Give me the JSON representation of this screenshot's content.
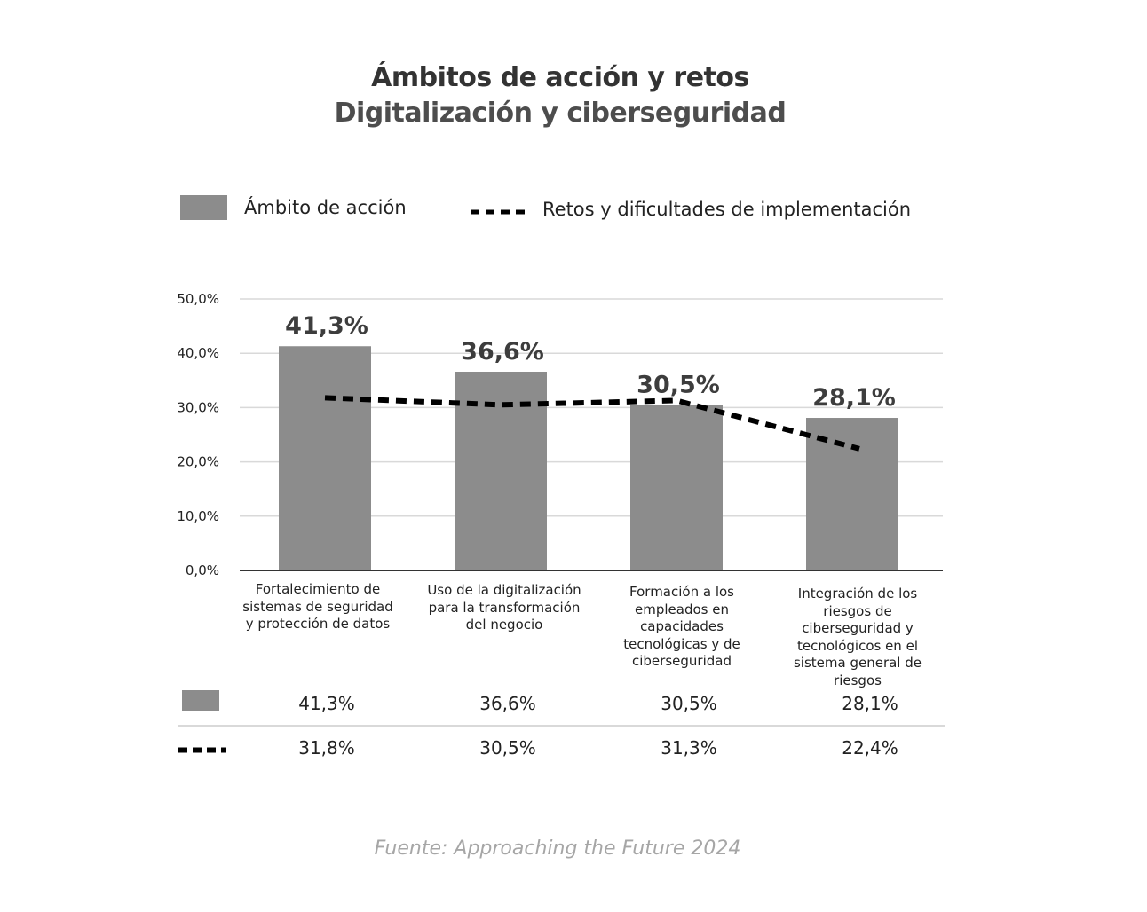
{
  "title": "Ámbitos de acción y retos",
  "subtitle": "Digitalización y ciberseguridad",
  "colors": {
    "bar": "#8c8c8c",
    "line": "#000000",
    "grid": "#d9d9d9",
    "title": "#333333"
  },
  "legend": {
    "bar_label": "Ámbito de acción",
    "line_label": "Retos y dificultades de implementación"
  },
  "chart_data": {
    "type": "bar",
    "categories": [
      "Fortalecimiento de sistemas de seguridad y protección de datos",
      "Uso de la digitalización para la transformación del negocio",
      "Formación a los empleados en capacidades tecnológicas y de ciberseguridad",
      "Integración de los riesgos de ciberseguridad y tecnológicos en el sistema general de riesgos"
    ],
    "series": [
      {
        "name": "Ámbito de acción",
        "type": "bar",
        "values": [
          41.3,
          36.6,
          30.5,
          28.1
        ],
        "labels": [
          "41,3%",
          "36,6%",
          "30,5%",
          "28,1%"
        ]
      },
      {
        "name": "Retos y dificultades de implementación",
        "type": "line",
        "style": "dashed",
        "values": [
          31.8,
          30.5,
          31.3,
          22.4
        ],
        "labels": [
          "31,8%",
          "30,5%",
          "31,3%",
          "22,4%"
        ]
      }
    ],
    "yticks": [
      "0,0%",
      "10,0%",
      "20,0%",
      "30,0%",
      "40,0%",
      "50,0%"
    ],
    "ylim": [
      0,
      50
    ],
    "grid": true,
    "legend_position": "top"
  },
  "table": {
    "bar_row": [
      "41,3%",
      "36,6%",
      "30,5%",
      "28,1%"
    ],
    "line_row": [
      "31,8%",
      "30,5%",
      "31,3%",
      "22,4%"
    ]
  },
  "source": "Fuente: Approaching the Future 2024"
}
